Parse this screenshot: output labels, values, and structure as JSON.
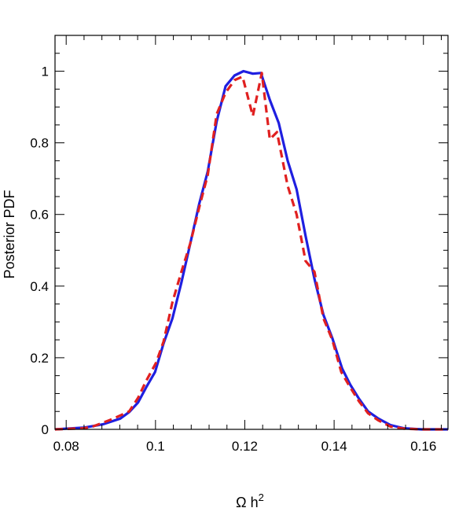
{
  "chart_data": {
    "type": "line",
    "title": "",
    "xlabel": "Ω h",
    "xlabel_superscript": "2",
    "ylabel": "Posterior PDF",
    "xlim": [
      0.0775,
      0.1655
    ],
    "ylim": [
      0,
      1.1
    ],
    "xticks": [
      0.08,
      0.1,
      0.12,
      0.14,
      0.16
    ],
    "xtick_labels": [
      "0.08",
      "0.1",
      "0.12",
      "0.14",
      "0.16"
    ],
    "yticks": [
      0,
      0.2,
      0.4,
      0.6,
      0.8,
      1
    ],
    "ytick_labels": [
      "0",
      "0.2",
      "0.4",
      "0.6",
      "0.8",
      "1"
    ],
    "grid": false,
    "legend": "none",
    "series": [
      {
        "color": "#1f1fe0",
        "style": "solid",
        "x": [
          0.0775,
          0.0841,
          0.0882,
          0.0921,
          0.0941,
          0.0961,
          0.0979,
          0.0999,
          0.1018,
          0.1038,
          0.1058,
          0.1078,
          0.1098,
          0.1117,
          0.1137,
          0.1157,
          0.1177,
          0.1197,
          0.1218,
          0.1236,
          0.1256,
          0.1276,
          0.1296,
          0.1316,
          0.1336,
          0.1356,
          0.1376,
          0.1396,
          0.1418,
          0.1436,
          0.1456,
          0.1476,
          0.1499,
          0.1526,
          0.1556,
          0.1596,
          0.1655
        ],
        "y": [
          0.0,
          0.005,
          0.014,
          0.03,
          0.048,
          0.075,
          0.117,
          0.16,
          0.24,
          0.31,
          0.41,
          0.52,
          0.63,
          0.72,
          0.86,
          0.958,
          0.988,
          1.0,
          0.993,
          0.995,
          0.92,
          0.855,
          0.75,
          0.67,
          0.54,
          0.42,
          0.32,
          0.255,
          0.17,
          0.125,
          0.085,
          0.05,
          0.03,
          0.012,
          0.003,
          0.0,
          0.0
        ]
      },
      {
        "color": "#e02020",
        "style": "dashed",
        "x": [
          0.0775,
          0.0841,
          0.0862,
          0.0902,
          0.0941,
          0.0961,
          0.0979,
          0.1001,
          0.1018,
          0.1038,
          0.1058,
          0.1078,
          0.1098,
          0.1117,
          0.1137,
          0.1157,
          0.1177,
          0.1195,
          0.1218,
          0.1238,
          0.1256,
          0.1272,
          0.1296,
          0.1316,
          0.1336,
          0.1356,
          0.1376,
          0.1396,
          0.1416,
          0.1436,
          0.1456,
          0.1476,
          0.1499,
          0.1526,
          0.1556,
          0.1596,
          0.1655
        ],
        "y": [
          0.0,
          0.003,
          0.009,
          0.028,
          0.05,
          0.088,
          0.135,
          0.185,
          0.245,
          0.355,
          0.44,
          0.52,
          0.62,
          0.71,
          0.88,
          0.94,
          0.975,
          0.985,
          0.875,
          0.995,
          0.81,
          0.83,
          0.68,
          0.6,
          0.47,
          0.44,
          0.31,
          0.25,
          0.16,
          0.117,
          0.078,
          0.045,
          0.025,
          0.008,
          0.002,
          0.0,
          0.0
        ]
      }
    ]
  }
}
